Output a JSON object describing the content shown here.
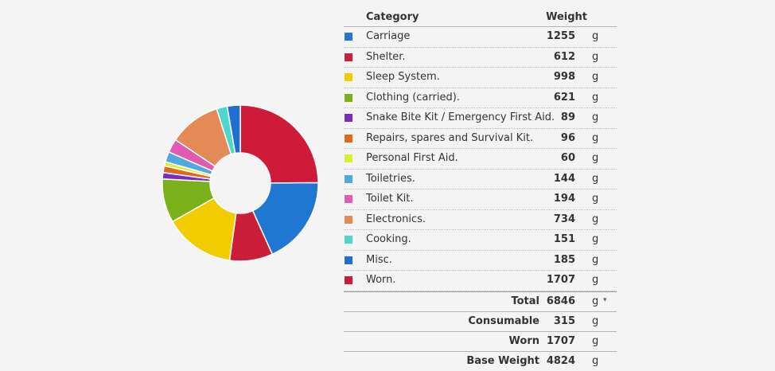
{
  "chart_data": {
    "type": "pie",
    "style": "donut",
    "unit": "g",
    "categories": [
      "Carriage",
      "Shelter.",
      "Sleep System.",
      "Clothing (carried).",
      "Snake Bite Kit / Emergency First Aid.",
      "Repairs, spares and Survival Kit.",
      "Personal First Aid.",
      "Toiletries.",
      "Toilet Kit.",
      "Electronics.",
      "Cooking.",
      "Misc.",
      "Worn."
    ],
    "values": [
      1255,
      612,
      998,
      621,
      89,
      96,
      60,
      144,
      194,
      734,
      151,
      185,
      1707
    ],
    "colors": [
      "#1f77d2",
      "#cc1e3a",
      "#f0cc00",
      "#7ab11a",
      "#7b2cbf",
      "#e06a1a",
      "#d9ef35",
      "#4fa8e0",
      "#e25bb3",
      "#e38a57",
      "#4fd6cb",
      "#1f6fd0",
      "#cf1a39"
    ],
    "wedge_order": [
      12,
      0,
      1,
      2,
      3,
      4,
      5,
      6,
      7,
      8,
      9,
      10,
      11
    ]
  },
  "table": {
    "header": {
      "category": "Category",
      "weight": "Weight"
    },
    "rows": [
      {
        "category": "Carriage",
        "weight": "1255",
        "unit": "g"
      },
      {
        "category": "Shelter.",
        "weight": "612",
        "unit": "g"
      },
      {
        "category": "Sleep System.",
        "weight": "998",
        "unit": "g"
      },
      {
        "category": "Clothing (carried).",
        "weight": "621",
        "unit": "g"
      },
      {
        "category": "Snake Bite Kit / Emergency First Aid.",
        "weight": "89",
        "unit": "g"
      },
      {
        "category": "Repairs, spares and Survival Kit.",
        "weight": "96",
        "unit": "g"
      },
      {
        "category": "Personal First Aid.",
        "weight": "60",
        "unit": "g"
      },
      {
        "category": "Toiletries.",
        "weight": "144",
        "unit": "g"
      },
      {
        "category": "Toilet Kit.",
        "weight": "194",
        "unit": "g"
      },
      {
        "category": "Electronics.",
        "weight": "734",
        "unit": "g"
      },
      {
        "category": "Cooking.",
        "weight": "151",
        "unit": "g"
      },
      {
        "category": "Misc.",
        "weight": "185",
        "unit": "g"
      },
      {
        "category": "Worn.",
        "weight": "1707",
        "unit": "g"
      }
    ],
    "summary": [
      {
        "label": "Total",
        "weight": "6846",
        "unit": "g"
      },
      {
        "label": "Consumable",
        "weight": "315",
        "unit": "g"
      },
      {
        "label": "Worn",
        "weight": "1707",
        "unit": "g"
      },
      {
        "label": "Base Weight",
        "weight": "4824",
        "unit": "g"
      }
    ],
    "caret_icon": "▾"
  }
}
